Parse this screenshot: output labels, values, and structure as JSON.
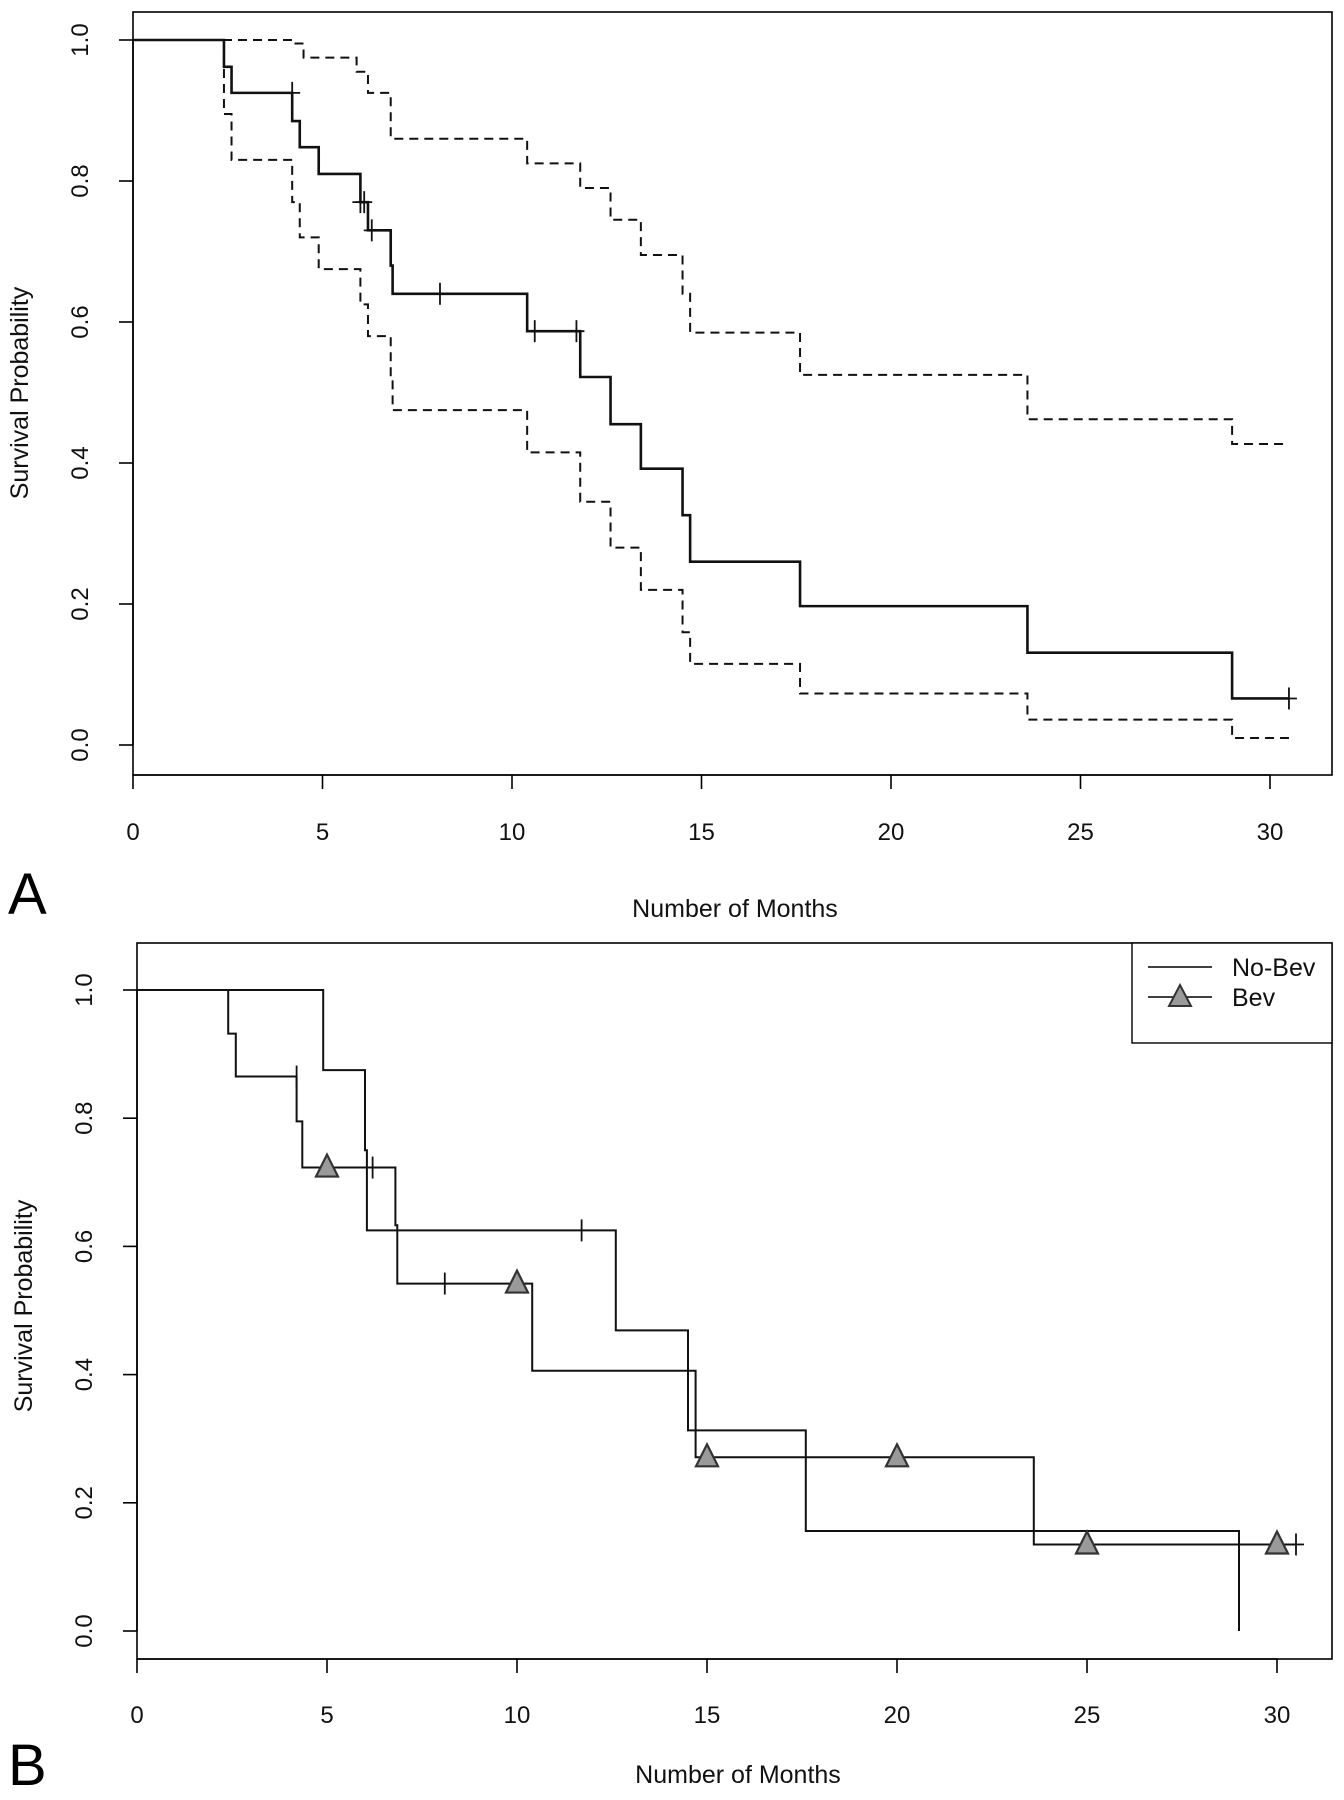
{
  "chart_data": [
    {
      "type": "line",
      "panel_label": "A",
      "xlabel": "Number of Months",
      "ylabel": "Survival Probability",
      "xlim": [
        0,
        31
      ],
      "ylim": [
        0,
        1
      ],
      "x_ticks": [
        "0",
        "5",
        "10",
        "15",
        "20",
        "25",
        "30"
      ],
      "y_ticks": [
        "0.0",
        "0.2",
        "0.4",
        "0.6",
        "0.8",
        "1.0"
      ],
      "grid": false,
      "series": [
        {
          "style": "solid",
          "steps": [
            [
              0,
              1.0
            ],
            [
              2.4,
              0.962
            ],
            [
              2.6,
              0.925
            ],
            [
              4.2,
              0.885
            ],
            [
              4.4,
              0.848
            ],
            [
              4.9,
              0.81
            ],
            [
              6.0,
              0.77
            ],
            [
              6.2,
              0.73
            ],
            [
              6.8,
              0.68
            ],
            [
              6.85,
              0.64
            ],
            [
              10.4,
              0.587
            ],
            [
              11.8,
              0.522
            ],
            [
              12.6,
              0.455
            ],
            [
              13.4,
              0.392
            ],
            [
              14.5,
              0.326
            ],
            [
              14.7,
              0.26
            ],
            [
              17.6,
              0.197
            ],
            [
              23.6,
              0.131
            ],
            [
              29.0,
              0.066
            ],
            [
              30.5,
              0.066
            ]
          ],
          "censored": [
            [
              4.2,
              0.925
            ],
            [
              6.0,
              0.77
            ],
            [
              6.1,
              0.77
            ],
            [
              6.3,
              0.73
            ],
            [
              8.1,
              0.64
            ],
            [
              10.6,
              0.587
            ],
            [
              11.7,
              0.587
            ],
            [
              30.5,
              0.066
            ]
          ]
        },
        {
          "style": "dashed",
          "steps": [
            [
              0,
              1.0
            ],
            [
              4.2,
              0.995
            ],
            [
              4.5,
              0.975
            ],
            [
              5.9,
              0.955
            ],
            [
              6.2,
              0.925
            ],
            [
              6.8,
              0.86
            ],
            [
              10.4,
              0.825
            ],
            [
              11.8,
              0.79
            ],
            [
              12.6,
              0.745
            ],
            [
              13.4,
              0.695
            ],
            [
              14.5,
              0.64
            ],
            [
              14.7,
              0.585
            ],
            [
              17.6,
              0.525
            ],
            [
              23.6,
              0.462
            ],
            [
              29.0,
              0.427
            ],
            [
              30.5,
              0.427
            ]
          ]
        },
        {
          "style": "dashed",
          "steps": [
            [
              0,
              1.0
            ],
            [
              2.4,
              0.895
            ],
            [
              2.6,
              0.83
            ],
            [
              4.2,
              0.77
            ],
            [
              4.4,
              0.72
            ],
            [
              4.9,
              0.675
            ],
            [
              6.0,
              0.625
            ],
            [
              6.2,
              0.58
            ],
            [
              6.8,
              0.52
            ],
            [
              6.85,
              0.475
            ],
            [
              10.4,
              0.415
            ],
            [
              11.8,
              0.345
            ],
            [
              12.6,
              0.28
            ],
            [
              13.4,
              0.22
            ],
            [
              14.5,
              0.16
            ],
            [
              14.7,
              0.115
            ],
            [
              17.6,
              0.073
            ],
            [
              23.6,
              0.036
            ],
            [
              29.0,
              0.01
            ],
            [
              30.5,
              0.01
            ]
          ]
        }
      ]
    },
    {
      "type": "line",
      "panel_label": "B",
      "xlabel": "Number of Months",
      "ylabel": "Survival Probability",
      "xlim": [
        0,
        31
      ],
      "ylim": [
        0,
        1
      ],
      "x_ticks": [
        "0",
        "5",
        "10",
        "15",
        "20",
        "25",
        "30"
      ],
      "y_ticks": [
        "0.0",
        "0.2",
        "0.4",
        "0.6",
        "0.8",
        "1.0"
      ],
      "grid": false,
      "legend": {
        "position": "top-right",
        "entries": [
          "No-Bev",
          "Bev"
        ]
      },
      "series": [
        {
          "name": "No-Bev",
          "steps": [
            [
              0,
              1.0
            ],
            [
              4.9,
              0.875
            ],
            [
              6.0,
              0.75
            ],
            [
              6.05,
              0.625
            ],
            [
              12.6,
              0.469
            ],
            [
              14.5,
              0.313
            ],
            [
              17.6,
              0.156
            ],
            [
              29.0,
              0.0
            ]
          ],
          "censored": [
            [
              11.7,
              0.625
            ]
          ]
        },
        {
          "name": "Bev",
          "marker": "triangle",
          "marker_color": "#9a9a9a",
          "steps": [
            [
              0,
              1.0
            ],
            [
              2.4,
              0.932
            ],
            [
              2.6,
              0.865
            ],
            [
              4.2,
              0.795
            ],
            [
              4.35,
              0.723
            ],
            [
              6.8,
              0.633
            ],
            [
              6.85,
              0.542
            ],
            [
              10.4,
              0.406
            ],
            [
              14.7,
              0.271
            ],
            [
              23.6,
              0.135
            ],
            [
              30.5,
              0.135
            ]
          ],
          "censored": [
            [
              4.2,
              0.865
            ],
            [
              6.2,
              0.723
            ],
            [
              8.1,
              0.542
            ],
            [
              30.5,
              0.135
            ]
          ],
          "markers_x": [
            5,
            10,
            15,
            20,
            25,
            30
          ]
        }
      ]
    }
  ]
}
